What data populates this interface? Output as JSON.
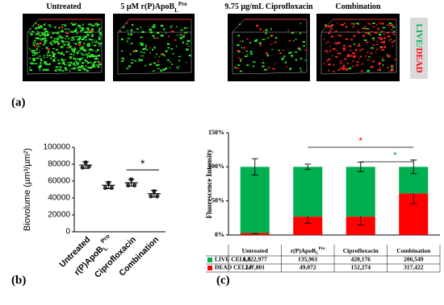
{
  "panel_labels": [
    "(a)",
    "(b)",
    "(c)"
  ],
  "panel_a": {
    "images": [
      {
        "title": "Untreated"
      },
      {
        "title": "5 µM r(P)ApoB",
        "sub": "L",
        "sup": "Pro"
      },
      {
        "title": "9.75 µg/mL Ciprofloxacin"
      },
      {
        "title": "Combination"
      }
    ],
    "stain_label": {
      "live": "LIVE/",
      "dead": "DEAD"
    }
  },
  "chart_data": [
    {
      "type": "dot",
      "y_label": "Biovolume (µm³/µm²)",
      "categories": [
        {
          "label": "Untreated"
        },
        {
          "label": "r(P)ApoB",
          "sub": "L",
          "sup": "Pro"
        },
        {
          "label": "Ciprofloxacin"
        },
        {
          "label": "Combination"
        }
      ],
      "points": [
        [
          82000,
          76000,
          77000
        ],
        [
          58000,
          52000,
          52000
        ],
        [
          62000,
          55000,
          55000
        ],
        [
          48000,
          42000,
          42000
        ]
      ],
      "means": [
        79000,
        55000,
        58000,
        45000
      ],
      "sd": [
        4000,
        4000,
        4000,
        4000
      ],
      "ylim": [
        0,
        100000
      ],
      "yticks": [
        0,
        20000,
        40000,
        60000,
        80000,
        100000
      ],
      "significance": [
        {
          "text": "*",
          "color": "#000000"
        }
      ]
    },
    {
      "type": "stacked_bar",
      "y_label": "Fluorescence Intensity",
      "categories": [
        {
          "label": "Untreated"
        },
        {
          "label": "r(P)ApoB",
          "sub": "L",
          "sup": "Pro"
        },
        {
          "label": "Ciprofloxacin"
        },
        {
          "label": "Combination"
        }
      ],
      "series": [
        {
          "name": "LIVE CELLS",
          "color": "#00b050",
          "values": [
            97,
            73,
            73,
            39
          ],
          "errors": [
            12,
            4,
            7,
            10
          ],
          "counts": [
            "6,822,977",
            "135,961",
            "420,176",
            "206,549"
          ]
        },
        {
          "name": "DEAD CELLS",
          "color": "#ff0000",
          "values": [
            3,
            27,
            27,
            61
          ],
          "errors": [
            1,
            10,
            12,
            15
          ],
          "counts": [
            "247,801",
            "49,072",
            "152,274",
            "317,422"
          ]
        }
      ],
      "ylim": [
        0,
        150
      ],
      "yticks": [
        {
          "value": 0,
          "label": "0%"
        },
        {
          "value": 50,
          "label": "50%"
        },
        {
          "value": 100,
          "label": "100%"
        },
        {
          "value": 150,
          "label": "150%"
        }
      ],
      "significance": [
        {
          "text": "*",
          "color": "#ff0000"
        },
        {
          "text": "*",
          "color": "#00b050"
        }
      ]
    }
  ]
}
